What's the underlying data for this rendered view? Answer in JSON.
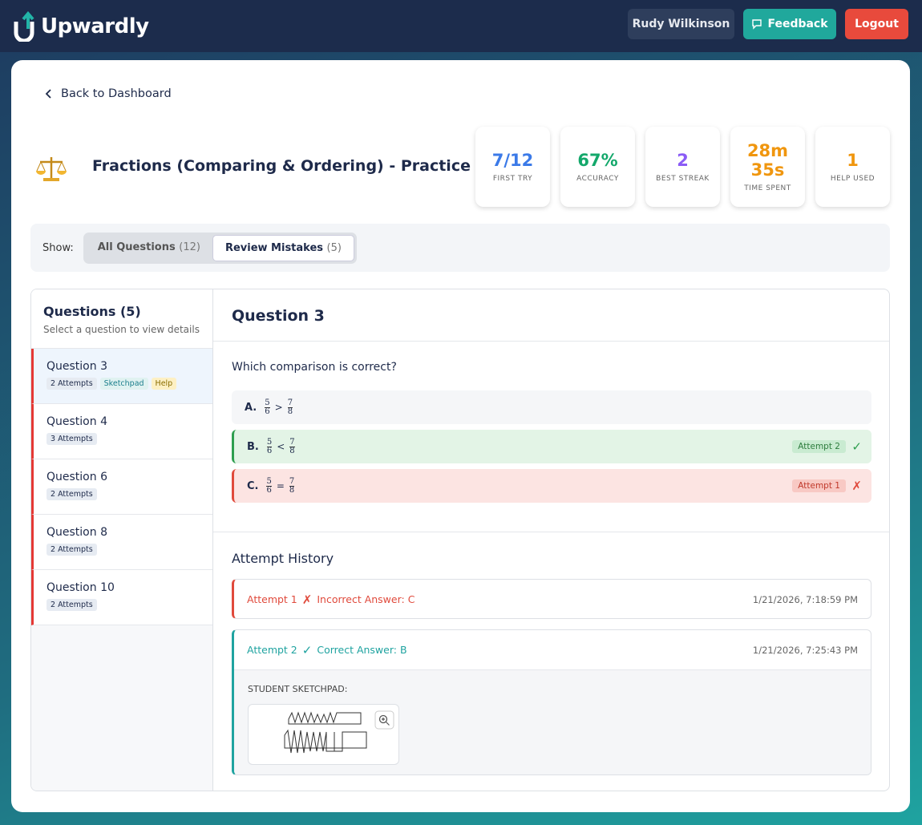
{
  "header": {
    "brand": "Upwardly",
    "user": "Rudy Wilkinson",
    "feedback": "Feedback",
    "logout": "Logout"
  },
  "back": "Back to Dashboard",
  "quiz": {
    "title": "Fractions (Comparing & Ordering) - Practice II"
  },
  "stats": [
    {
      "value": "7/12",
      "label": "FIRST TRY"
    },
    {
      "value": "67%",
      "label": "ACCURACY"
    },
    {
      "value": "2",
      "label": "BEST STREAK"
    },
    {
      "value": "28m 35s",
      "label": "TIME SPENT"
    },
    {
      "value": "1",
      "label": "HELP USED"
    }
  ],
  "filter": {
    "label": "Show:",
    "tabs": [
      {
        "label": "All Questions",
        "count": "(12)"
      },
      {
        "label": "Review Mistakes",
        "count": "(5)"
      }
    ]
  },
  "sidebar": {
    "title": "Questions (5)",
    "subtitle": "Select a question to view details",
    "items": [
      {
        "label": "Question 3",
        "tags": [
          "2 Attempts",
          "Sketchpad",
          "Help"
        ]
      },
      {
        "label": "Question 4",
        "tags": [
          "3 Attempts"
        ]
      },
      {
        "label": "Question 6",
        "tags": [
          "2 Attempts"
        ]
      },
      {
        "label": "Question 8",
        "tags": [
          "2 Attempts"
        ]
      },
      {
        "label": "Question 10",
        "tags": [
          "2 Attempts"
        ]
      }
    ]
  },
  "detail": {
    "title": "Question 3",
    "prompt": "Which comparison is correct?",
    "options": [
      {
        "letter": "A.",
        "lhs": [
          "5",
          "6"
        ],
        "op": ">",
        "rhs": [
          "7",
          "8"
        ]
      },
      {
        "letter": "B.",
        "lhs": [
          "5",
          "6"
        ],
        "op": "<",
        "rhs": [
          "7",
          "8"
        ],
        "badge": "Attempt 2",
        "icon": "✓"
      },
      {
        "letter": "C.",
        "lhs": [
          "5",
          "6"
        ],
        "op": "=",
        "rhs": [
          "7",
          "8"
        ],
        "badge": "Attempt 1",
        "icon": "✗"
      }
    ],
    "history_title": "Attempt History",
    "attempts": [
      {
        "label": "Attempt 1",
        "icon": "✗",
        "result": "Incorrect Answer: C",
        "time": "1/21/2026, 7:18:59 PM"
      },
      {
        "label": "Attempt 2",
        "icon": "✓",
        "result": "Correct Answer: B",
        "time": "1/21/2026, 7:25:43 PM",
        "sketch_label": "STUDENT SKETCHPAD:"
      }
    ]
  }
}
